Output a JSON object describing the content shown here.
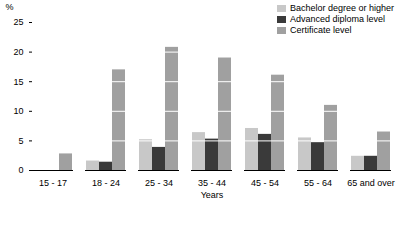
{
  "chart_data": {
    "type": "bar",
    "categories": [
      "15 - 17",
      "18 - 24",
      "25 - 34",
      "35 - 44",
      "45 - 54",
      "55 - 64",
      "65 and over"
    ],
    "series": [
      {
        "name": "Bachelor degree or higher",
        "color": "#c8c8c8",
        "values": [
          0,
          1.6,
          5.2,
          6.4,
          7.1,
          5.5,
          2.4
        ]
      },
      {
        "name": "Advanced diploma level",
        "color": "#3a3a3a",
        "values": [
          0,
          1.4,
          3.9,
          5.3,
          6.1,
          4.7,
          2.4
        ]
      },
      {
        "name": "Certificate level",
        "color": "#a0a0a0",
        "values": [
          2.8,
          17,
          20.8,
          19,
          16.1,
          11,
          6.5
        ]
      }
    ],
    "x_label": "Years",
    "y_label": "%",
    "ylim": [
      0,
      25
    ],
    "yticks": [
      0,
      5,
      10,
      15,
      20,
      25
    ],
    "grid": true,
    "legend": "top-right"
  }
}
